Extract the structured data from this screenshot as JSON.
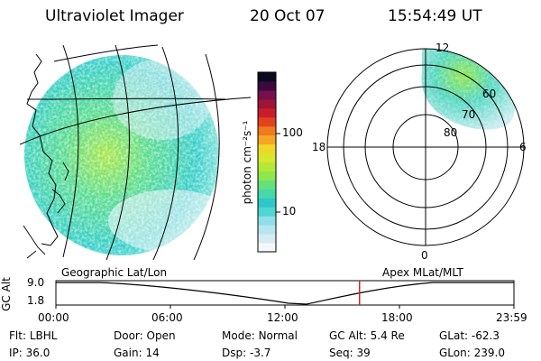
{
  "header": {
    "title": "Ultraviolet Imager",
    "date": "20 Oct 07",
    "time": "15:54:49 UT"
  },
  "colorbar": {
    "label": "photon cm⁻²s⁻¹",
    "ticks": [
      "100",
      "10"
    ],
    "scale": "log",
    "colors": [
      "#f4f8fa",
      "#d6ecf2",
      "#b7e6ee",
      "#8fdfe7",
      "#4fd6d0",
      "#2fc8c8",
      "#46d8a8",
      "#66e07a",
      "#8ee84a",
      "#b5e836",
      "#d8e62e",
      "#f0d828",
      "#f5a623",
      "#f07a1e",
      "#e2421e",
      "#c81e2a",
      "#a01438",
      "#74104a",
      "#3a0a3c",
      "#0a0a1e"
    ]
  },
  "left_panel": {
    "label": "Geographic Lat/Lon",
    "colors": {
      "edge": "#9be7e0",
      "mid": "#35cfc9",
      "core": "#57dc8f",
      "bright": "#a6e845"
    }
  },
  "right_panel": {
    "label": "Apex MLat/MLT",
    "mlt_labels": {
      "top": "12",
      "left": "18",
      "right": "6",
      "bottom": "0"
    },
    "mlat_labels": [
      "60",
      "70",
      "80"
    ]
  },
  "timeline": {
    "ylabel": "GC Alt",
    "yticks": [
      "9.0",
      "1.8"
    ],
    "xticks": [
      "00:00",
      "06:00",
      "12:00",
      "18:00",
      "23:59"
    ],
    "marker_color": "#e02020",
    "marker_time_hours": 15.91
  },
  "info": {
    "row1": [
      {
        "label": "Flt:",
        "value": "LBHL"
      },
      {
        "label": "Door:",
        "value": "Open"
      },
      {
        "label": "Mode:",
        "value": "Normal"
      },
      {
        "label": "GC Alt:",
        "value": "5.4 Re"
      },
      {
        "label": "GLat:",
        "value": "-62.3"
      }
    ],
    "row2": [
      {
        "label": "IP:",
        "value": "36.0"
      },
      {
        "label": "Gain:",
        "value": "14"
      },
      {
        "label": "Dsp:",
        "value": "-3.7"
      },
      {
        "label": "Seq:",
        "value": "39"
      },
      {
        "label": "GLon:",
        "value": "239.0"
      }
    ]
  }
}
